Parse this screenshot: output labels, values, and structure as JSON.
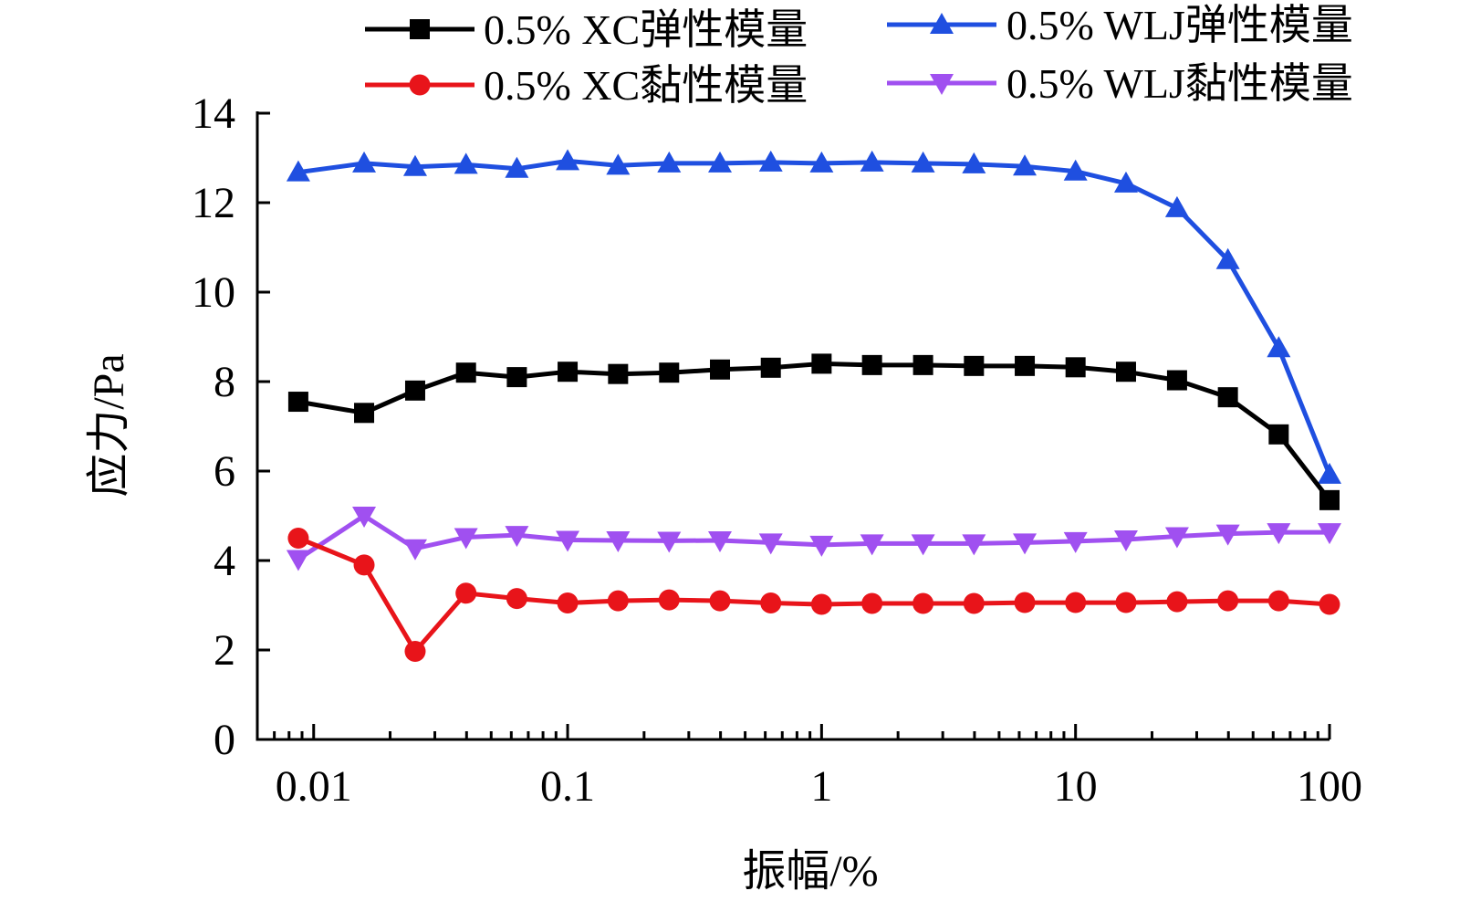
{
  "chart_data": {
    "type": "line",
    "xlabel": "振幅/%",
    "ylabel": "应力/Pa",
    "x_scale": "log",
    "xlim": [
      0.006,
      100
    ],
    "ylim": [
      0,
      14
    ],
    "x_ticks": [
      {
        "value": 0.01,
        "label": "0.01"
      },
      {
        "value": 0.1,
        "label": "0.1"
      },
      {
        "value": 1,
        "label": "1"
      },
      {
        "value": 10,
        "label": "10"
      },
      {
        "value": 100,
        "label": "100"
      }
    ],
    "y_ticks": [
      {
        "value": 0,
        "label": "0"
      },
      {
        "value": 2,
        "label": "2"
      },
      {
        "value": 4,
        "label": "4"
      },
      {
        "value": 6,
        "label": "6"
      },
      {
        "value": 8,
        "label": "8"
      },
      {
        "value": 10,
        "label": "10"
      },
      {
        "value": 12,
        "label": "12"
      },
      {
        "value": 14,
        "label": "14"
      }
    ],
    "grid": false,
    "legend_position": "top",
    "x": [
      0.0087,
      0.0158,
      0.0251,
      0.0398,
      0.0631,
      0.1,
      0.158,
      0.251,
      0.398,
      0.631,
      1,
      1.58,
      2.51,
      3.98,
      6.31,
      10,
      15.8,
      25.1,
      39.8,
      63.1,
      100
    ],
    "series": [
      {
        "name": "0.5% XC弹性模量",
        "color": "#000000",
        "marker": "square",
        "values": [
          7.55,
          7.3,
          7.8,
          8.2,
          8.1,
          8.22,
          8.17,
          8.2,
          8.27,
          8.31,
          8.4,
          8.37,
          8.37,
          8.35,
          8.35,
          8.32,
          8.22,
          8.03,
          7.65,
          6.82,
          5.35
        ]
      },
      {
        "name": "0.5% WLJ弹性模量",
        "color": "#1f4fe0",
        "marker": "triangle-up",
        "values": [
          12.68,
          12.88,
          12.8,
          12.85,
          12.76,
          12.93,
          12.83,
          12.88,
          12.88,
          12.9,
          12.88,
          12.9,
          12.88,
          12.86,
          12.81,
          12.7,
          12.43,
          11.88,
          10.72,
          8.75,
          5.92
        ]
      },
      {
        "name": "0.5% XC黏性模量",
        "color": "#e8141a",
        "marker": "circle",
        "values": [
          4.5,
          3.9,
          1.97,
          3.27,
          3.15,
          3.05,
          3.1,
          3.12,
          3.1,
          3.05,
          3.02,
          3.04,
          3.04,
          3.04,
          3.06,
          3.06,
          3.06,
          3.08,
          3.1,
          3.1,
          3.02
        ]
      },
      {
        "name": "0.5% WLJ黏性模量",
        "color": "#a050f0",
        "marker": "triangle-down",
        "values": [
          4.03,
          5.0,
          4.27,
          4.52,
          4.57,
          4.46,
          4.45,
          4.44,
          4.45,
          4.4,
          4.35,
          4.38,
          4.38,
          4.38,
          4.4,
          4.43,
          4.47,
          4.54,
          4.6,
          4.63,
          4.63
        ]
      }
    ]
  }
}
